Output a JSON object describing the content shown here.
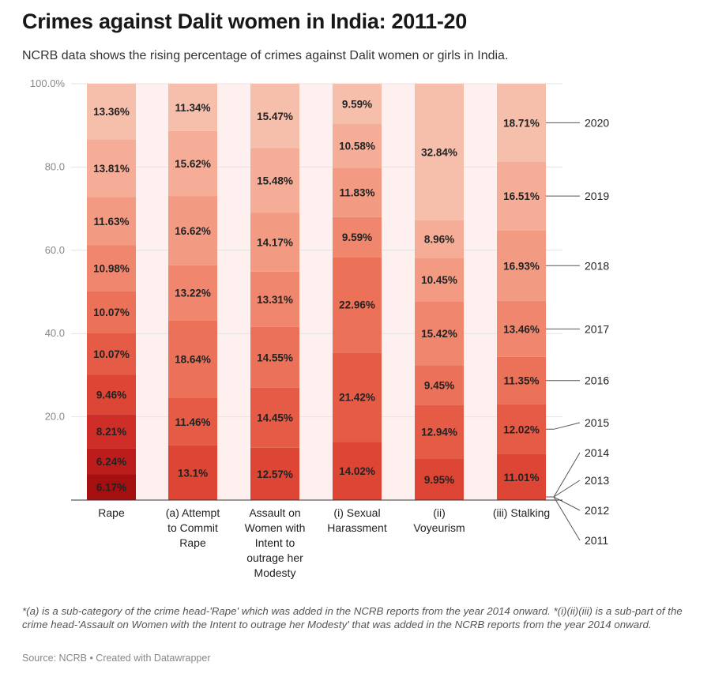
{
  "title": "Crimes against Dalit women in India: 2011-20",
  "subtitle": "NCRB data shows the rising percentage of crimes against Dalit women or girls in India.",
  "notes": "*(a) is a sub-category of the crime head-'Rape' which was added in the NCRB reports from the year 2014 onward. *(i)(ii)(iii) is a sub-part of the crime head-'Assault on Women with the Intent to outrage her Modesty' that was added in the NCRB reports from the year 2014 onward.",
  "source": "Source: NCRB • Created with Datawrapper",
  "chart_data": {
    "type": "bar",
    "stacked": true,
    "categories": [
      [
        "Rape"
      ],
      [
        "(a) Attempt",
        "to Commit",
        "Rape"
      ],
      [
        "Assault on",
        "Women with",
        "Intent to",
        "outrage her",
        "Modesty"
      ],
      [
        "(i) Sexual",
        "Harassment"
      ],
      [
        "(ii)",
        "Voyeurism"
      ],
      [
        "(iii) Stalking"
      ]
    ],
    "years": [
      "2011",
      "2012",
      "2013",
      "2014",
      "2015",
      "2016",
      "2017",
      "2018",
      "2019",
      "2020"
    ],
    "colors": [
      "#a50f0f",
      "#bd1c1c",
      "#cf2e28",
      "#dd4534",
      "#e65b45",
      "#ec7159",
      "#f0866d",
      "#f39a82",
      "#f5ad98",
      "#f6bfac"
    ],
    "series": [
      {
        "name": "2011",
        "values": [
          6.17,
          0,
          0,
          0,
          0,
          0
        ],
        "labels": [
          "6.17%",
          "",
          "",
          "",
          "",
          ""
        ]
      },
      {
        "name": "2012",
        "values": [
          6.24,
          0,
          0,
          0,
          0,
          0
        ],
        "labels": [
          "6.24%",
          "",
          "",
          "",
          "",
          ""
        ]
      },
      {
        "name": "2013",
        "values": [
          8.21,
          0,
          0,
          0,
          0,
          0
        ],
        "labels": [
          "8.21%",
          "",
          "",
          "",
          "",
          ""
        ]
      },
      {
        "name": "2014",
        "values": [
          9.46,
          13.1,
          12.57,
          14.02,
          9.95,
          11.01
        ],
        "labels": [
          "9.46%",
          "13.1%",
          "12.57%",
          "14.02%",
          "9.95%",
          "11.01%"
        ]
      },
      {
        "name": "2015",
        "values": [
          10.07,
          11.46,
          14.45,
          21.42,
          12.94,
          12.02
        ],
        "labels": [
          "10.07%",
          "11.46%",
          "14.45%",
          "21.42%",
          "12.94%",
          "12.02%"
        ]
      },
      {
        "name": "2016",
        "values": [
          10.07,
          18.64,
          14.55,
          22.96,
          9.45,
          11.35
        ],
        "labels": [
          "10.07%",
          "18.64%",
          "14.55%",
          "22.96%",
          "9.45%",
          "11.35%"
        ]
      },
      {
        "name": "2017",
        "values": [
          10.98,
          13.22,
          13.31,
          9.59,
          15.42,
          13.46
        ],
        "labels": [
          "10.98%",
          "13.22%",
          "13.31%",
          "9.59%",
          "15.42%",
          "13.46%"
        ]
      },
      {
        "name": "2018",
        "values": [
          11.63,
          16.62,
          14.17,
          11.83,
          10.45,
          16.93
        ],
        "labels": [
          "11.63%",
          "16.62%",
          "14.17%",
          "11.83%",
          "10.45%",
          "16.93%"
        ]
      },
      {
        "name": "2019",
        "values": [
          13.81,
          15.62,
          15.48,
          10.58,
          8.96,
          16.51
        ],
        "labels": [
          "13.81%",
          "15.62%",
          "15.48%",
          "10.58%",
          "8.96%",
          "16.51%"
        ]
      },
      {
        "name": "2020",
        "values": [
          13.36,
          11.34,
          15.47,
          9.59,
          32.84,
          18.71
        ],
        "labels": [
          "13.36%",
          "11.34%",
          "15.47%",
          "9.59%",
          "32.84%",
          "18.71%"
        ]
      }
    ],
    "yticks": [
      "0",
      "20.0",
      "40.0",
      "60.0",
      "80.0",
      "100.0%"
    ],
    "ylim": [
      0,
      100
    ],
    "grid": true,
    "legend": "right, year labels with leader lines to the Stalking bar"
  }
}
